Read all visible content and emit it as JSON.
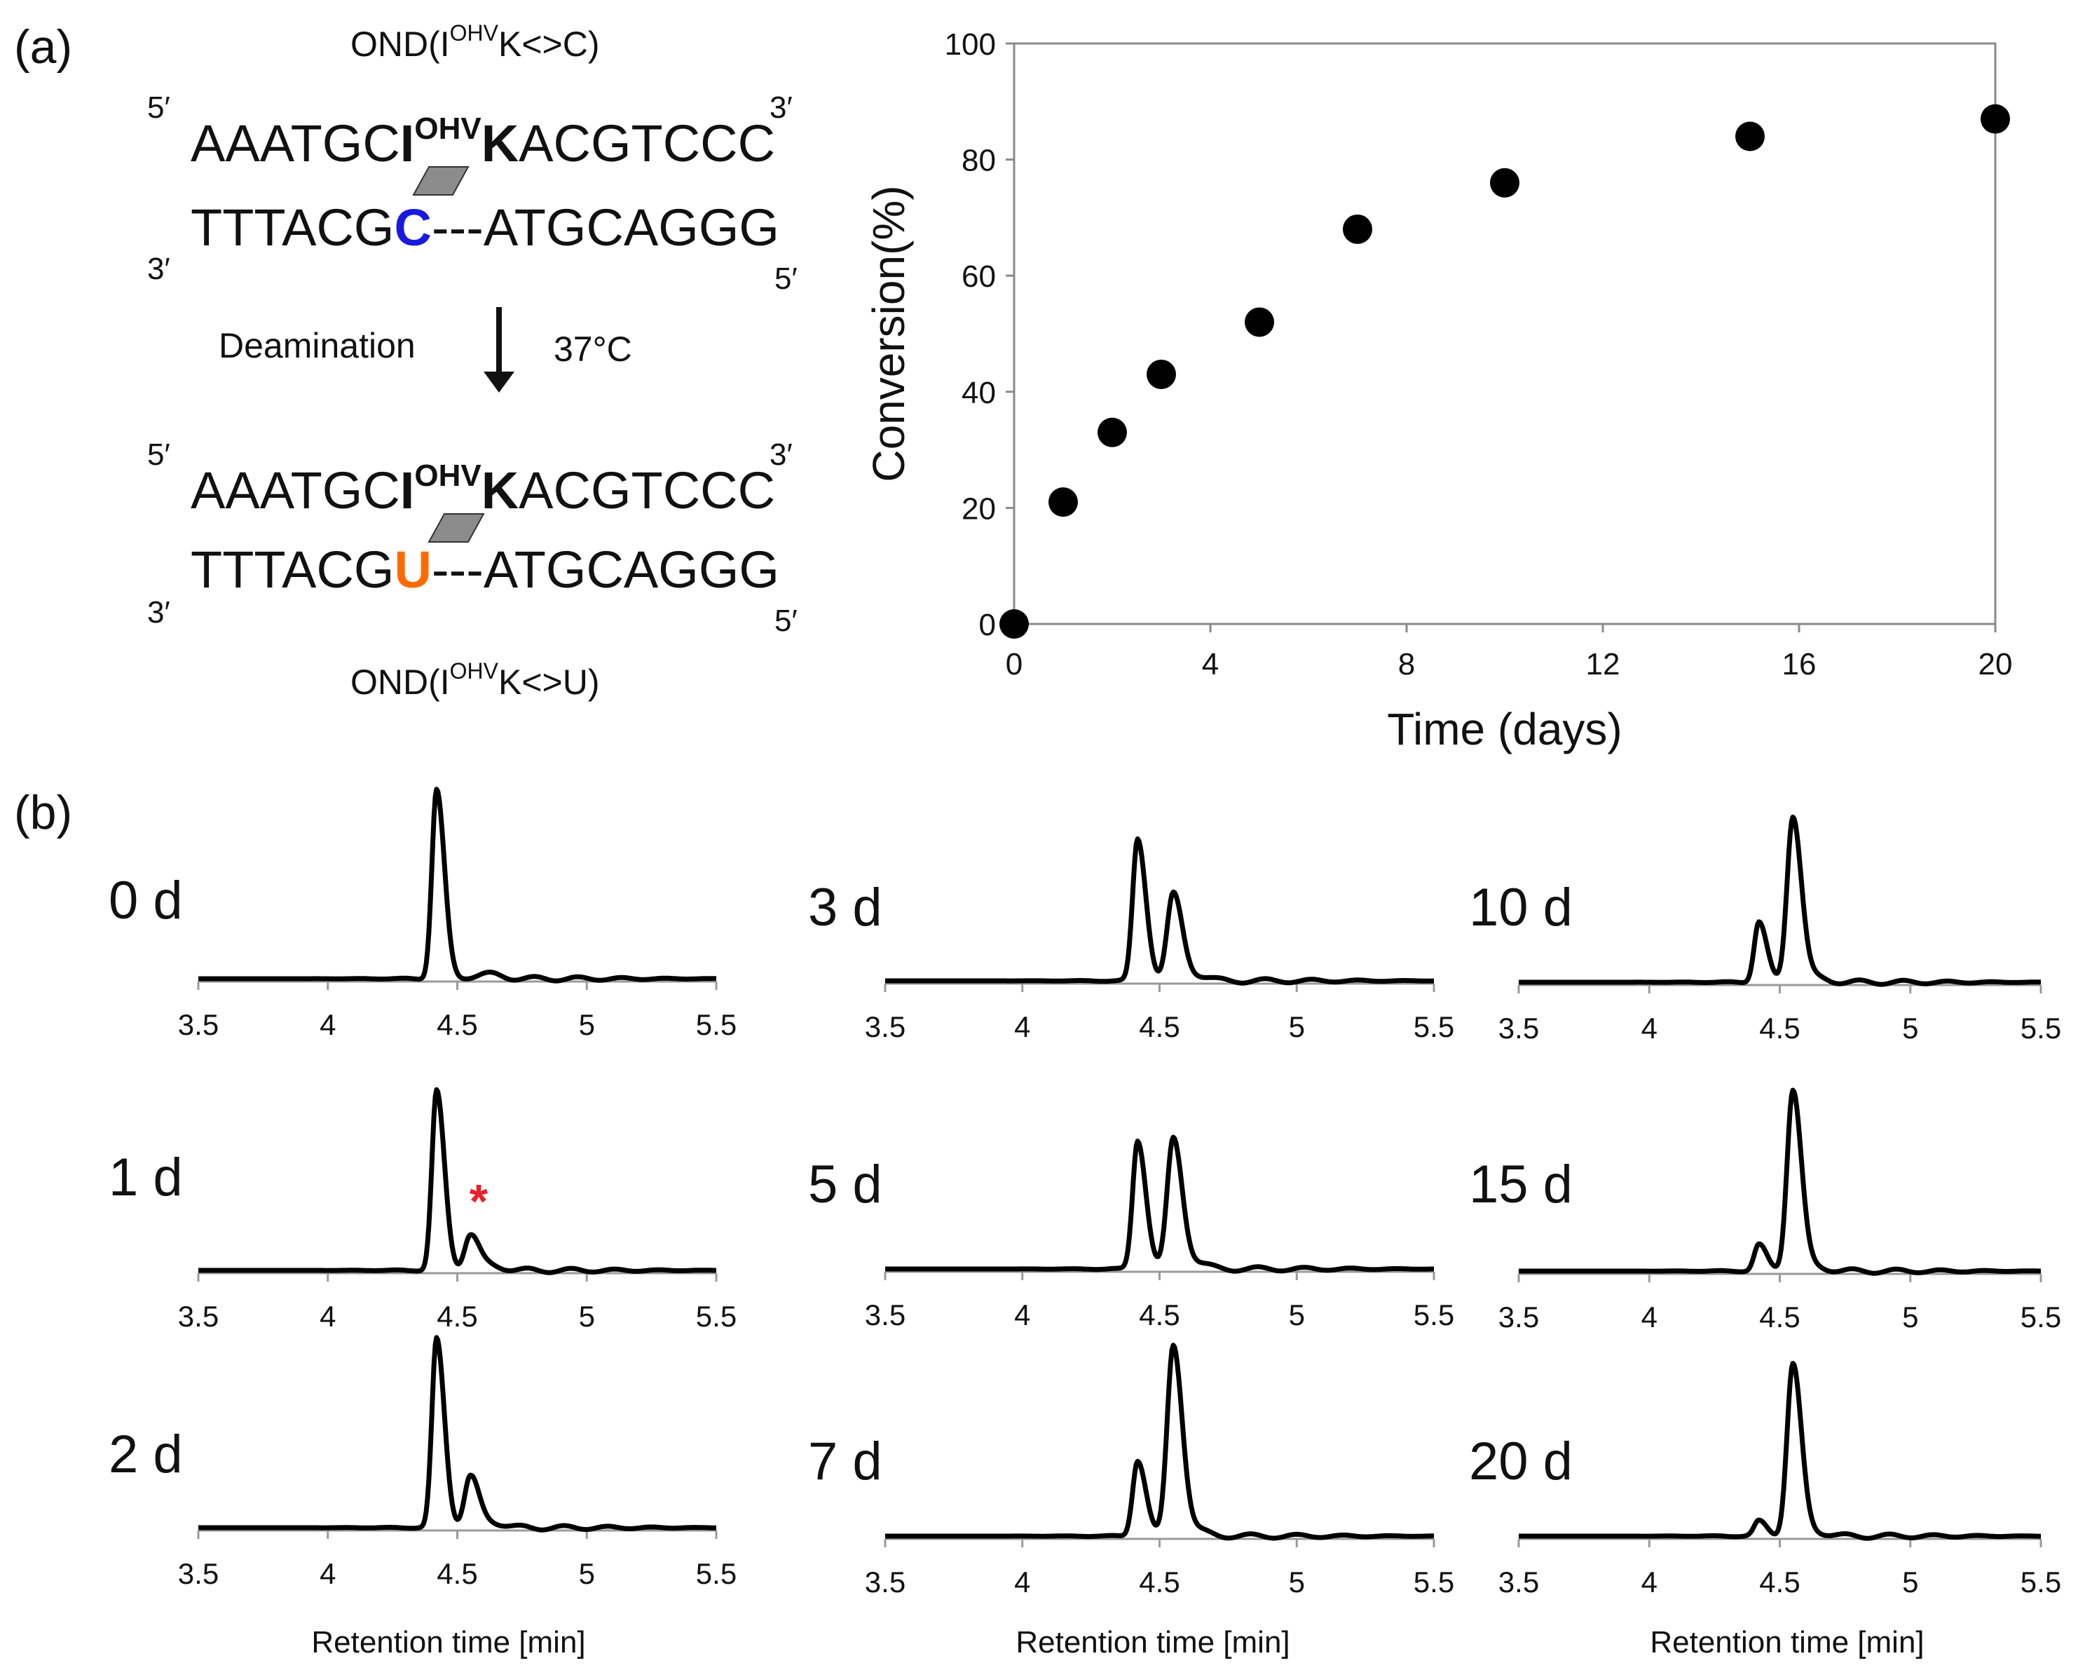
{
  "panel_a": {
    "label": "(a)",
    "top_title": {
      "prefix": "OND(I",
      "sup": "OHV",
      "suffix": "K<>C)"
    },
    "bottom_title": {
      "prefix": "OND(I",
      "sup": "OHV",
      "suffix": "K<>U)"
    },
    "five_prime": "5′",
    "three_prime": "3′",
    "upper_strand": {
      "pre": "AAATGC",
      "base": "I",
      "sup": "OHV",
      "k": "K",
      "post": "ACGTCCC"
    },
    "lower_strand_before": {
      "pre": "TTTACG",
      "base": "C",
      "post": "---ATGCAGGG"
    },
    "lower_strand_after": {
      "pre": "TTTACG",
      "base": "U",
      "post": "---ATGCAGGG"
    },
    "reaction_label": "Deamination",
    "temperature": "37°C",
    "colors": {
      "cytosine": "#1a1adc",
      "uracil": "#ff6a00",
      "parallelogram": "#8c8c8c"
    }
  },
  "chart_data": [
    {
      "type": "scatter",
      "id": "conversion",
      "title": "",
      "xlabel": "Time (days)",
      "ylabel": "Conversion(%)",
      "x": [
        0,
        1,
        2,
        3,
        5,
        7,
        10,
        15,
        20
      ],
      "y": [
        0,
        21,
        33,
        43,
        52,
        68,
        76,
        84,
        87
      ],
      "xlim": [
        0,
        20
      ],
      "ylim": [
        0,
        100
      ],
      "xticks": [
        0,
        4,
        8,
        12,
        16,
        20
      ],
      "yticks": [
        0,
        20,
        40,
        60,
        80,
        100
      ],
      "grid": false
    },
    {
      "type": "line",
      "id": "chromatograms",
      "panel_label": "(b)",
      "xlabel": "Retention time [min]",
      "xlim": [
        3.5,
        5.5
      ],
      "xticks": [
        "3.5",
        "4",
        "4.5",
        "5",
        "5.5"
      ],
      "peak_times": [
        4.42,
        4.55
      ],
      "annotation": {
        "panel": "1 d",
        "text": "*",
        "color": "#e8202a"
      },
      "panels": [
        {
          "label": "0 d",
          "peak1": 1.0,
          "peak2": 0.0
        },
        {
          "label": "1 d",
          "peak1": 0.95,
          "peak2": 0.18
        },
        {
          "label": "2 d",
          "peak1": 1.0,
          "peak2": 0.26
        },
        {
          "label": "3 d",
          "peak1": 0.75,
          "peak2": 0.45
        },
        {
          "label": "5 d",
          "peak1": 0.68,
          "peak2": 0.68
        },
        {
          "label": "7 d",
          "peak1": 0.4,
          "peak2": 1.0
        },
        {
          "label": "10 d",
          "peak1": 0.32,
          "peak2": 0.87
        },
        {
          "label": "15 d",
          "peak1": 0.14,
          "peak2": 0.95
        },
        {
          "label": "20 d",
          "peak1": 0.08,
          "peak2": 0.9
        }
      ]
    }
  ]
}
